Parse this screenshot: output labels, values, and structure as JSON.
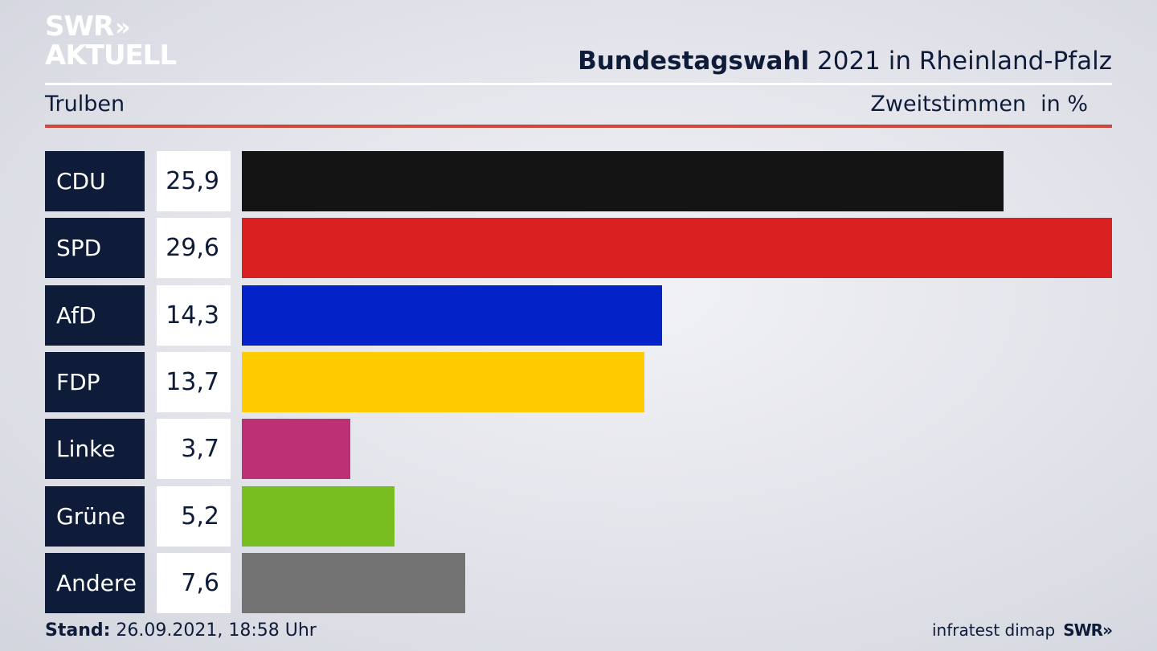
{
  "brand": {
    "line1": "SWR",
    "line2": "AKTUELL",
    "chevrons": "»",
    "footer_logo": "SWR»"
  },
  "header": {
    "title_bold": "Bundestagswahl",
    "title_rest": "2021 in Rheinland-Pfalz",
    "region": "Trulben",
    "vote_type": "Zweitstimmen",
    "unit": "in %"
  },
  "footer": {
    "stand_label": "Stand:",
    "stand_value": "26.09.2021, 18:58 Uhr",
    "source": "infratest dimap"
  },
  "colors": {
    "navy": "#0e1c3a",
    "red_rule": "#d0473a",
    "white_rule": "#ffffff"
  },
  "chart_data": {
    "type": "bar",
    "orientation": "horizontal",
    "categories": [
      "CDU",
      "SPD",
      "AfD",
      "FDP",
      "Linke",
      "Grüne",
      "Andere"
    ],
    "values": [
      25.9,
      29.6,
      14.3,
      13.7,
      3.7,
      5.2,
      7.6
    ],
    "value_labels": [
      "25,9",
      "29,6",
      "14,3",
      "13,7",
      "3,7",
      "5,2",
      "7,6"
    ],
    "colors": [
      "#141414",
      "#d92121",
      "#0323c9",
      "#ffcc00",
      "#be3075",
      "#78be20",
      "#737373"
    ],
    "xlim": [
      0,
      29.6
    ],
    "grid": false,
    "legend": "none"
  }
}
